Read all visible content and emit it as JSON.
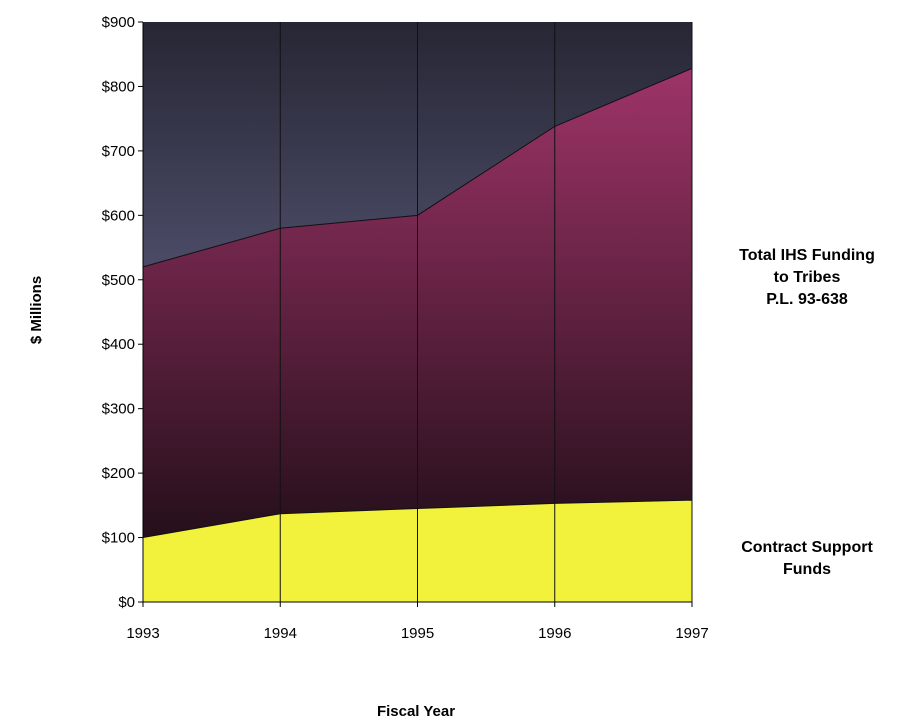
{
  "chart_data": {
    "type": "area",
    "x": [
      1993,
      1994,
      1995,
      1996,
      1997
    ],
    "x_tick_labels": [
      "1993",
      "1994",
      "1995",
      "1996",
      "1997"
    ],
    "y_tick_labels": [
      "$0",
      "$100",
      "$200",
      "$300",
      "$400",
      "$500",
      "$600",
      "$700",
      "$800",
      "$900"
    ],
    "ylim": [
      0,
      900
    ],
    "xlabel": "Fiscal Year",
    "ylabel": "$ Millions",
    "grid": "vertical lines at each year",
    "series": [
      {
        "name_lines": [
          "Total IHS Funding",
          "to Tribes",
          "P.L. 93-638"
        ],
        "values": [
          520,
          580,
          600,
          738,
          828
        ],
        "color_top": "#9e3468",
        "color_bottom": "#140a10"
      },
      {
        "name_lines": [
          "Contract Support",
          "Funds"
        ],
        "values": [
          100,
          137,
          145,
          153,
          158
        ],
        "color": "#f2f23c"
      }
    ],
    "plot_background": {
      "color_top": "#262634",
      "color_bottom": "#7e7eac"
    }
  }
}
